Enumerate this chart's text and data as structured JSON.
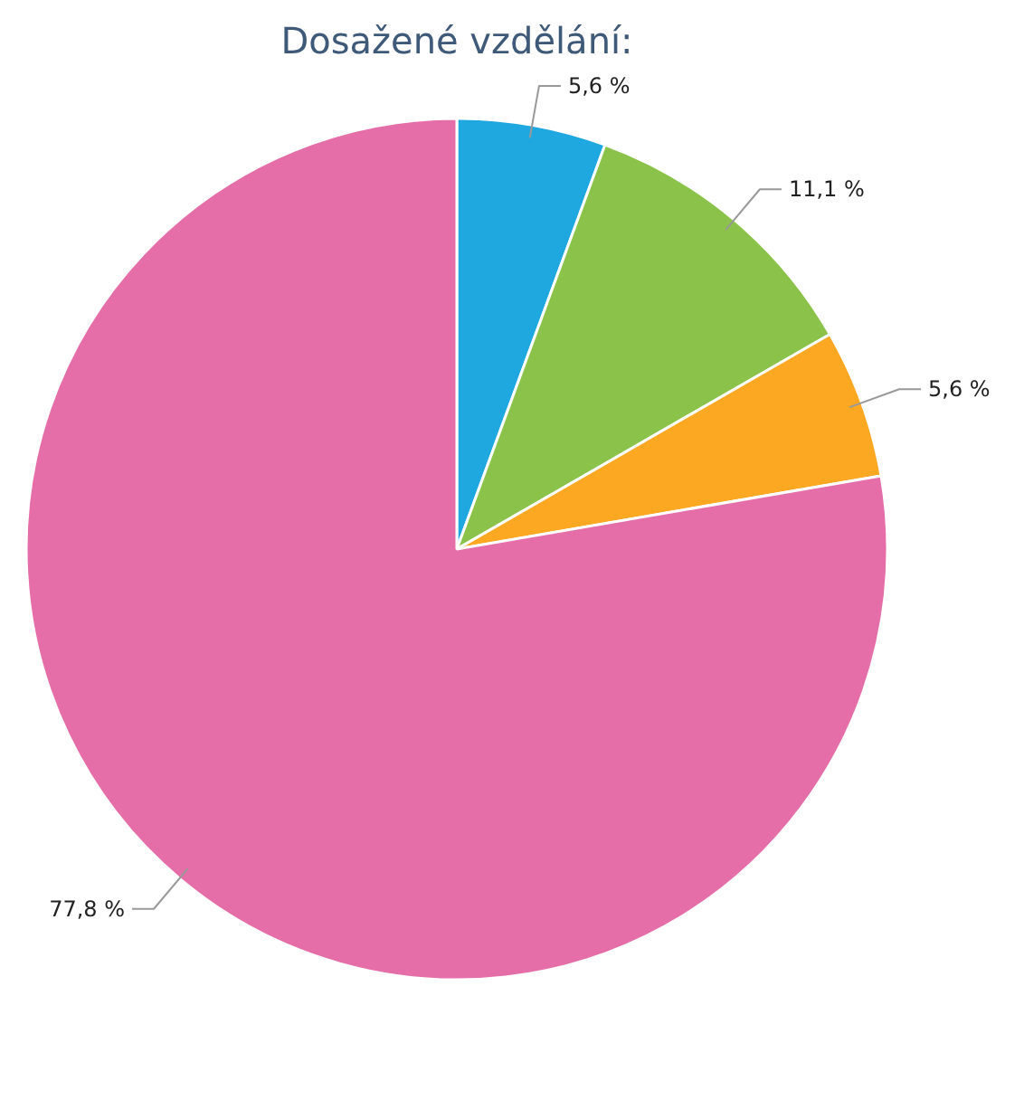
{
  "chart_data": {
    "type": "pie",
    "title": "Dosažené vzdělání:",
    "categories": [
      null,
      null,
      null,
      null
    ],
    "values": [
      5.6,
      11.1,
      5.6,
      77.8
    ],
    "colors": [
      "#1fa8e0",
      "#8bc34a",
      "#fda823",
      "#e56ea9"
    ],
    "value_labels": [
      "5,6 %",
      "11,1 %",
      "5,6 %",
      "77,8 %"
    ]
  }
}
